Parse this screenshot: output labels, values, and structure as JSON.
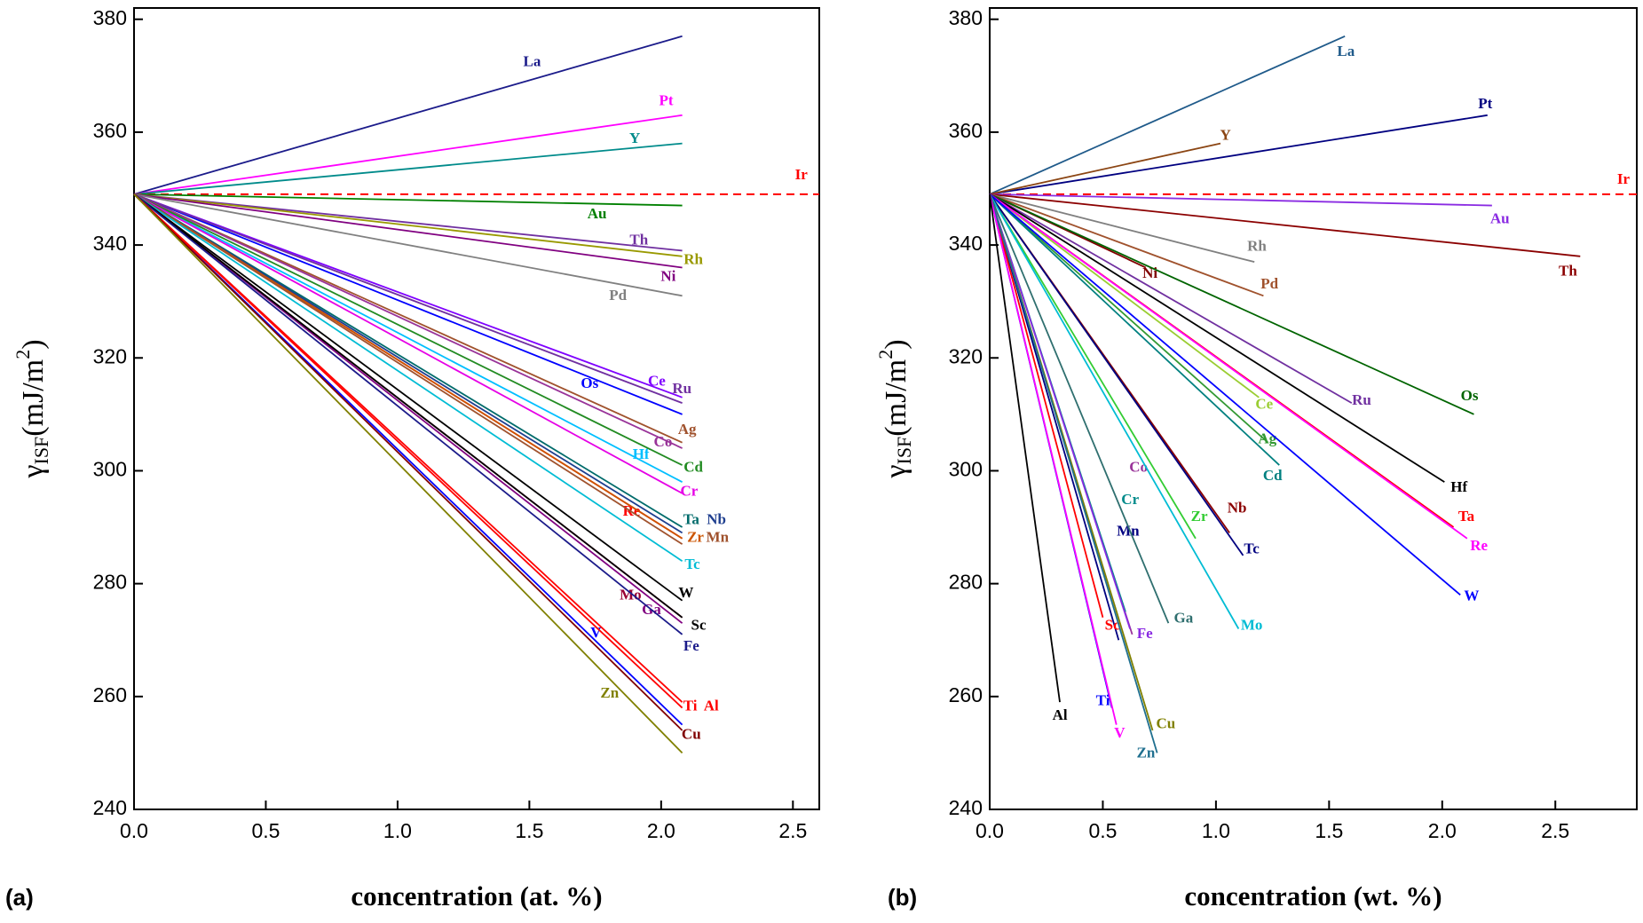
{
  "chart_data": [
    {
      "type": "line",
      "panel_label": "(a)",
      "xlabel": "concentration (at. %)",
      "ylabel": {
        "symbol": "γ",
        "subscript": "ISF",
        "unit": "(mJ/m",
        "superscript": "2",
        "close": ")"
      },
      "xlim": [
        0,
        2.6
      ],
      "ylim": [
        240,
        382
      ],
      "xticks": [
        {
          "value": 0,
          "label": "0.0"
        },
        0.5,
        {
          "value": 1,
          "label": "1.0"
        },
        1.5,
        {
          "value": 2,
          "label": "2.0"
        },
        2.5
      ],
      "yticks": [
        240,
        260,
        280,
        300,
        320,
        340,
        360,
        380
      ],
      "series": [
        {
          "name": "La",
          "color": "#1b1b8a",
          "x": [
            0,
            2.08
          ],
          "values": [
            349,
            377
          ]
        },
        {
          "name": "Pt",
          "color": "#ff00ff",
          "x": [
            0,
            2.08
          ],
          "values": [
            349,
            363
          ]
        },
        {
          "name": "Y",
          "color": "#008b8b",
          "x": [
            0,
            2.08
          ],
          "values": [
            349,
            358
          ]
        },
        {
          "name": "Ir",
          "color": "#ff0000",
          "linestyle": "dashed",
          "x": [
            0,
            2.6
          ],
          "values": [
            349,
            349
          ]
        },
        {
          "name": "Au",
          "color": "#008000",
          "x": [
            0,
            2.08
          ],
          "values": [
            349,
            347
          ]
        },
        {
          "name": "Th",
          "color": "#7030a0",
          "x": [
            0,
            2.08
          ],
          "values": [
            349,
            339
          ]
        },
        {
          "name": "Rh",
          "color": "#999900",
          "x": [
            0,
            2.08
          ],
          "values": [
            349,
            338
          ]
        },
        {
          "name": "Ni",
          "color": "#800080",
          "x": [
            0,
            2.08
          ],
          "values": [
            349,
            336
          ]
        },
        {
          "name": "Pd",
          "color": "#808080",
          "x": [
            0,
            2.08
          ],
          "values": [
            349,
            331
          ]
        },
        {
          "name": "Os",
          "color": "#0000ff",
          "x": [
            0,
            2.08
          ],
          "values": [
            349,
            310
          ]
        },
        {
          "name": "Ce",
          "color": "#7f00ff",
          "x": [
            0,
            2.08
          ],
          "values": [
            349,
            313
          ]
        },
        {
          "name": "Ru",
          "color": "#7030a0",
          "x": [
            0,
            2.08
          ],
          "values": [
            349,
            312
          ]
        },
        {
          "name": "Ag",
          "color": "#a0522d",
          "x": [
            0,
            2.08
          ],
          "values": [
            349,
            305
          ]
        },
        {
          "name": "Co",
          "color": "#993399",
          "x": [
            0,
            2.08
          ],
          "values": [
            349,
            304
          ]
        },
        {
          "name": "Hf",
          "color": "#00bfff",
          "x": [
            0,
            2.08
          ],
          "values": [
            349,
            298
          ]
        },
        {
          "name": "Cd",
          "color": "#228b22",
          "x": [
            0,
            2.08
          ],
          "values": [
            349,
            301
          ]
        },
        {
          "name": "Cr",
          "color": "#e600e6",
          "x": [
            0,
            2.08
          ],
          "values": [
            349,
            296
          ]
        },
        {
          "name": "Re",
          "color": "#ff0000",
          "x": [
            0,
            2.08
          ],
          "values": [
            349,
            288
          ]
        },
        {
          "name": "Ta",
          "color": "#006b6b",
          "x": [
            0,
            2.08
          ],
          "values": [
            349,
            290
          ]
        },
        {
          "name": "Nb",
          "color": "#1f3f8f",
          "x": [
            0,
            2.08
          ],
          "values": [
            349,
            289
          ]
        },
        {
          "name": "Zr",
          "color": "#cc5500",
          "x": [
            0,
            2.08
          ],
          "values": [
            349,
            288
          ]
        },
        {
          "name": "Mn",
          "color": "#a0522d",
          "x": [
            0,
            2.08
          ],
          "values": [
            349,
            287
          ]
        },
        {
          "name": "Tc",
          "color": "#00bcd4",
          "x": [
            0,
            2.08
          ],
          "values": [
            349,
            284
          ]
        },
        {
          "name": "W",
          "color": "#000000",
          "x": [
            0,
            2.08
          ],
          "values": [
            349,
            277
          ]
        },
        {
          "name": "Mo",
          "color": "#990033",
          "x": [
            0,
            2.08
          ],
          "values": [
            349,
            274
          ]
        },
        {
          "name": "Ga",
          "color": "#800080",
          "x": [
            0,
            2.08
          ],
          "values": [
            349,
            273
          ]
        },
        {
          "name": "Sc",
          "color": "#000000",
          "x": [
            0,
            2.08
          ],
          "values": [
            349,
            274
          ]
        },
        {
          "name": "Fe",
          "color": "#1b1b8a",
          "x": [
            0,
            2.08
          ],
          "values": [
            349,
            271
          ]
        },
        {
          "name": "V",
          "color": "#0000ff",
          "x": [
            0,
            2.08
          ],
          "values": [
            349,
            255
          ]
        },
        {
          "name": "Ti",
          "color": "#ff0000",
          "x": [
            0,
            2.08
          ],
          "values": [
            349,
            259
          ]
        },
        {
          "name": "Al",
          "color": "#ff0000",
          "x": [
            0,
            2.08
          ],
          "values": [
            349,
            258
          ]
        },
        {
          "name": "Cu",
          "color": "#800000",
          "x": [
            0,
            2.08
          ],
          "values": [
            349,
            254
          ]
        },
        {
          "name": "Zn",
          "color": "#808000",
          "x": [
            0,
            2.08
          ],
          "values": [
            349,
            250
          ]
        }
      ]
    },
    {
      "type": "line",
      "panel_label": "(b)",
      "xlabel": "concentration (wt. %)",
      "ylabel": {
        "symbol": "γ",
        "subscript": "ISF",
        "unit": "(mJ/m",
        "superscript": "2",
        "close": ")"
      },
      "xlim": [
        0,
        2.86
      ],
      "ylim": [
        240,
        382
      ],
      "xticks": [
        {
          "value": 0,
          "label": "0.0"
        },
        0.5,
        {
          "value": 1,
          "label": "1.0"
        },
        1.5,
        {
          "value": 2,
          "label": "2.0"
        },
        2.5
      ],
      "yticks": [
        240,
        260,
        280,
        300,
        320,
        340,
        360,
        380
      ],
      "series": [
        {
          "name": "La",
          "color": "#1f5a8a",
          "x": [
            0,
            1.57
          ],
          "values": [
            349,
            377
          ]
        },
        {
          "name": "Pt",
          "color": "#000080",
          "x": [
            0,
            2.2
          ],
          "values": [
            349,
            363
          ]
        },
        {
          "name": "Y",
          "color": "#8b4513",
          "x": [
            0,
            1.02
          ],
          "values": [
            349,
            358
          ]
        },
        {
          "name": "Ir",
          "color": "#ff0000",
          "linestyle": "dashed",
          "x": [
            0,
            2.86
          ],
          "values": [
            349,
            349
          ]
        },
        {
          "name": "Au",
          "color": "#8a2be2",
          "x": [
            0,
            2.22
          ],
          "values": [
            349,
            347
          ]
        },
        {
          "name": "Th",
          "color": "#8b0000",
          "x": [
            0,
            2.61
          ],
          "values": [
            349,
            338
          ]
        },
        {
          "name": "Rh",
          "color": "#808080",
          "x": [
            0,
            1.17
          ],
          "values": [
            349,
            337
          ]
        },
        {
          "name": "Pd",
          "color": "#a0522d",
          "x": [
            0,
            1.21
          ],
          "values": [
            349,
            331
          ]
        },
        {
          "name": "Ni",
          "color": "#800000",
          "x": [
            0,
            0.69
          ],
          "values": [
            349,
            336
          ]
        },
        {
          "name": "Os",
          "color": "#006400",
          "x": [
            0,
            2.14
          ],
          "values": [
            349,
            310
          ]
        },
        {
          "name": "Ru",
          "color": "#7030a0",
          "x": [
            0,
            1.6
          ],
          "values": [
            349,
            312
          ]
        },
        {
          "name": "Ce",
          "color": "#9acd32",
          "x": [
            0,
            1.19
          ],
          "values": [
            349,
            313
          ]
        },
        {
          "name": "Ag",
          "color": "#339933",
          "x": [
            0,
            1.23
          ],
          "values": [
            349,
            305
          ]
        },
        {
          "name": "Cd",
          "color": "#008080",
          "x": [
            0,
            1.28
          ],
          "values": [
            349,
            301
          ]
        },
        {
          "name": "Hf",
          "color": "#000000",
          "x": [
            0,
            2.01
          ],
          "values": [
            349,
            298
          ]
        },
        {
          "name": "Ta",
          "color": "#ff0000",
          "x": [
            0,
            2.05
          ],
          "values": [
            349,
            290
          ]
        },
        {
          "name": "Re",
          "color": "#ff00ff",
          "x": [
            0,
            2.11
          ],
          "values": [
            349,
            288
          ]
        },
        {
          "name": "W",
          "color": "#0000ff",
          "x": [
            0,
            2.08
          ],
          "values": [
            349,
            278
          ]
        },
        {
          "name": "Co",
          "color": "#993399",
          "x": [
            0,
            0.63
          ],
          "values": [
            349,
            271
          ]
        },
        {
          "name": "Nb",
          "color": "#8b0000",
          "x": [
            0,
            1.06
          ],
          "values": [
            349,
            289
          ]
        },
        {
          "name": "Zr",
          "color": "#33cc33",
          "x": [
            0,
            0.91
          ],
          "values": [
            349,
            288
          ]
        },
        {
          "name": "Tc",
          "color": "#000080",
          "x": [
            0,
            1.12
          ],
          "values": [
            349,
            285
          ]
        },
        {
          "name": "Cr",
          "color": "#008b8b",
          "x": [
            0,
            0.6
          ],
          "values": [
            349,
            275
          ]
        },
        {
          "name": "Mn",
          "color": "#000080",
          "x": [
            0,
            0.57
          ],
          "values": [
            349,
            270
          ]
        },
        {
          "name": "Mo",
          "color": "#00bcd4",
          "x": [
            0,
            1.1
          ],
          "values": [
            349,
            272
          ]
        },
        {
          "name": "Ga",
          "color": "#2f6f6f",
          "x": [
            0,
            0.79
          ],
          "values": [
            349,
            273
          ]
        },
        {
          "name": "Fe",
          "color": "#8a2be2",
          "x": [
            0,
            0.62
          ],
          "values": [
            349,
            272
          ]
        },
        {
          "name": "Sc",
          "color": "#ff0000",
          "x": [
            0,
            0.5
          ],
          "values": [
            349,
            274
          ]
        },
        {
          "name": "Cu",
          "color": "#808000",
          "x": [
            0,
            0.72
          ],
          "values": [
            349,
            254
          ]
        },
        {
          "name": "Zn",
          "color": "#1f6f8f",
          "x": [
            0,
            0.74
          ],
          "values": [
            349,
            250
          ]
        },
        {
          "name": "Ti",
          "color": "#0000ff",
          "x": [
            0,
            0.54
          ],
          "values": [
            349,
            258
          ]
        },
        {
          "name": "V",
          "color": "#ff00ff",
          "x": [
            0,
            0.56
          ],
          "values": [
            349,
            255
          ]
        },
        {
          "name": "Al",
          "color": "#000000",
          "x": [
            0,
            0.31
          ],
          "values": [
            349,
            259
          ]
        }
      ]
    }
  ]
}
